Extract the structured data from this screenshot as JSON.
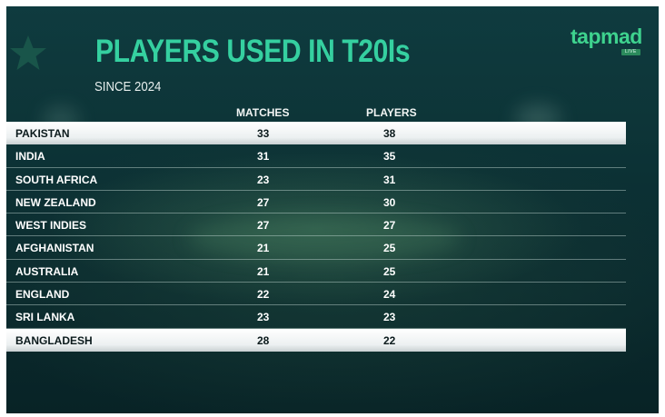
{
  "title": "PLAYERS USED IN T20Is",
  "subtitle": "SINCE 2024",
  "brand": {
    "name": "tapmad",
    "badge": "LIVE"
  },
  "columns": {
    "matches": "MATCHES",
    "players": "PLAYERS"
  },
  "rows": [
    {
      "team": "PAKISTAN",
      "matches": "33",
      "players": "38",
      "highlighted": true
    },
    {
      "team": "INDIA",
      "matches": "31",
      "players": "35",
      "highlighted": false
    },
    {
      "team": "SOUTH AFRICA",
      "matches": "23",
      "players": "31",
      "highlighted": false
    },
    {
      "team": "NEW ZEALAND",
      "matches": "27",
      "players": "30",
      "highlighted": false
    },
    {
      "team": "WEST INDIES",
      "matches": "27",
      "players": "27",
      "highlighted": false
    },
    {
      "team": "AFGHANISTAN",
      "matches": "21",
      "players": "25",
      "highlighted": false
    },
    {
      "team": "AUSTRALIA",
      "matches": "21",
      "players": "25",
      "highlighted": false
    },
    {
      "team": "ENGLAND",
      "matches": "22",
      "players": "24",
      "highlighted": false
    },
    {
      "team": "SRI LANKA",
      "matches": "23",
      "players": "23",
      "highlighted": false
    },
    {
      "team": "BANGLADESH",
      "matches": "28",
      "players": "22",
      "highlighted": true
    }
  ],
  "colors": {
    "title": "#35d0a0",
    "brand": "#3ed28e",
    "background": "#0d3538",
    "highlight_row": "#ecf0f1"
  },
  "icons": {
    "watermark": "pakistan-star-icon"
  }
}
